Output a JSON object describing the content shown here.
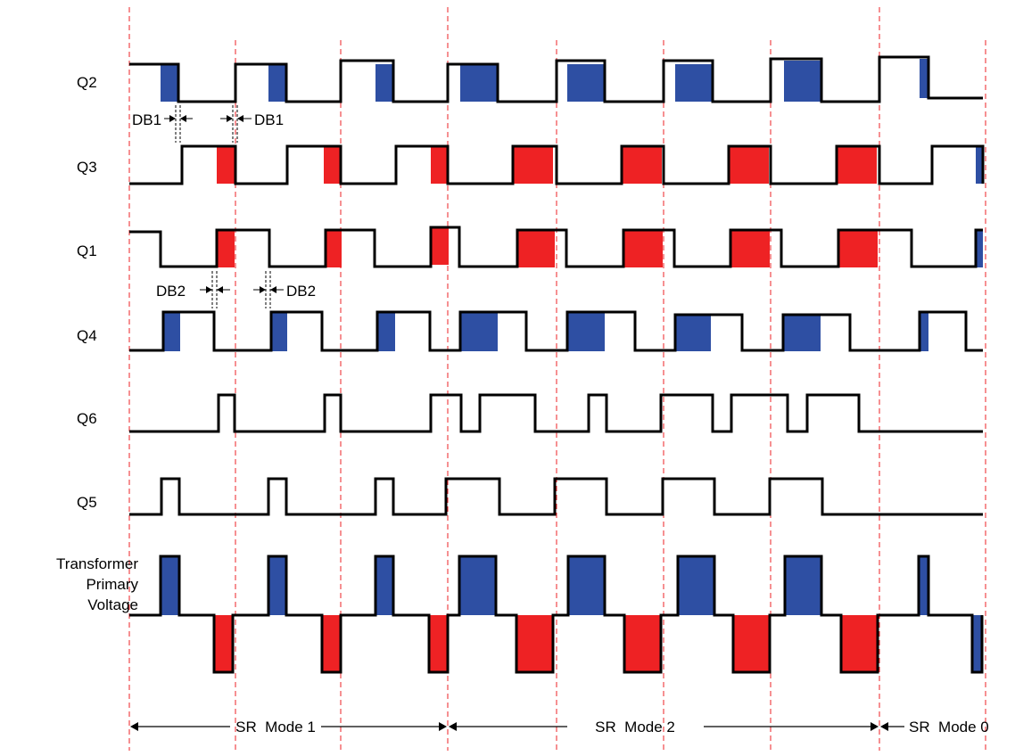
{
  "signals": [
    {
      "id": "q2",
      "label": "Q2"
    },
    {
      "id": "q3",
      "label": "Q3"
    },
    {
      "id": "q1",
      "label": "Q1"
    },
    {
      "id": "q4",
      "label": "Q4"
    },
    {
      "id": "q6",
      "label": "Q6"
    },
    {
      "id": "q5",
      "label": "Q5"
    }
  ],
  "transformer_label": [
    "Transformer",
    "Primary",
    "Voltage"
  ],
  "dead_band": {
    "db1_left": "DB1",
    "db1_right": "DB1",
    "db2_left": "DB2",
    "db2_right": "DB2"
  },
  "modes": {
    "mode1": "SR  Mode 1",
    "mode2": "SR  Mode 2",
    "mode0": "SR  Mode 0"
  },
  "colors": {
    "blue": "#2e4fa3",
    "red": "#ee2224",
    "guide": "#ee2224",
    "trace": "#000000"
  }
}
